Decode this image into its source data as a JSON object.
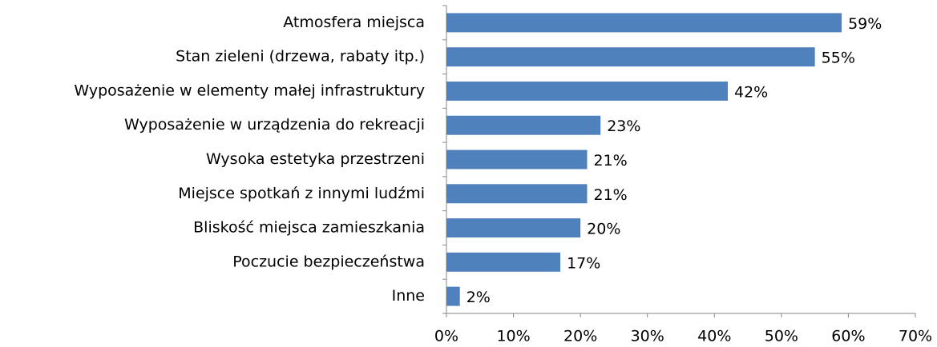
{
  "chart_data": {
    "type": "bar",
    "orientation": "horizontal",
    "categories": [
      "Atmosfera miejsca",
      "Stan zieleni (drzewa, rabaty itp.)",
      "Wyposażenie w elementy małej infrastruktury",
      "Wyposażenie w urządzenia do rekreacji",
      "Wysoka estetyka przestrzeni",
      "Miejsce spotkań z innymi ludźmi",
      "Bliskość miejsca zamieszkania",
      "Poczucie bezpieczeństwa",
      "Inne"
    ],
    "values": [
      59,
      55,
      42,
      23,
      21,
      21,
      20,
      17,
      2
    ],
    "value_labels": [
      "59%",
      "55%",
      "42%",
      "23%",
      "21%",
      "21%",
      "20%",
      "17%",
      "2%"
    ],
    "color": "#4f81bd",
    "xlim": [
      0,
      70
    ],
    "xticks": [
      {
        "value": 0,
        "label": "0%"
      },
      {
        "value": 10,
        "label": "10%"
      },
      {
        "value": 20,
        "label": "20%"
      },
      {
        "value": 30,
        "label": "30%"
      },
      {
        "value": 40,
        "label": "40%"
      },
      {
        "value": 50,
        "label": "50%"
      },
      {
        "value": 60,
        "label": "60%"
      },
      {
        "value": 70,
        "label": "70%"
      }
    ],
    "grid": false
  }
}
